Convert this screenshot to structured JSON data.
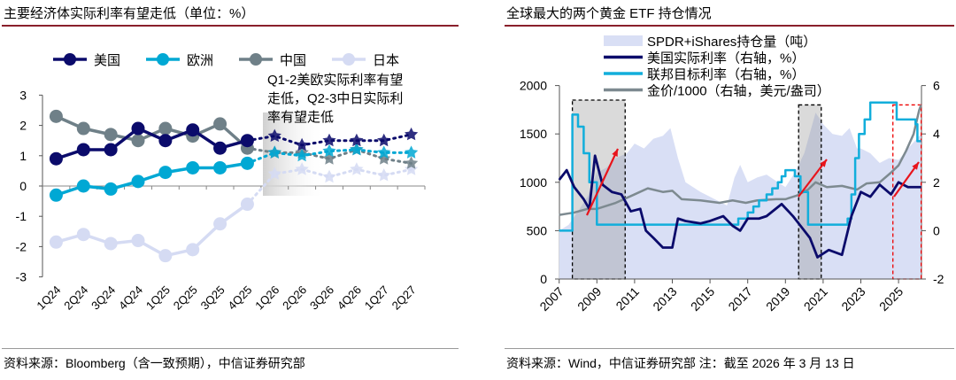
{
  "left": {
    "title": "主要经济体实际利率有望走低（单位：%）",
    "source": "资料来源：Bloomberg（含一致预期），中信证券研究部",
    "annotation": [
      "Q1-2美欧实际利率有望",
      "走低，Q2-3中日实际利",
      "率有望走低"
    ]
  },
  "right": {
    "title": "全球最大的两个黄金 ETF 持仓情况",
    "source": "资料来源：Wind，中信证券研究部 注：截至 2026 年 3 月 13 日"
  },
  "chart_data": [
    {
      "type": "line",
      "categories": [
        "1Q24",
        "2Q24",
        "3Q24",
        "4Q24",
        "1Q25",
        "2Q25",
        "3Q25",
        "4Q25",
        "1Q26",
        "2Q26",
        "3Q26",
        "4Q26",
        "1Q27",
        "2Q27"
      ],
      "forecast_from": "1Q26",
      "ylim": [
        -3,
        3
      ],
      "yticks": [
        3,
        2,
        1,
        0,
        -1,
        -2,
        -3
      ],
      "legend": "top",
      "series": [
        {
          "name": "美国",
          "color": "#0b0b6b",
          "values": [
            0.9,
            1.2,
            1.2,
            1.9,
            1.5,
            1.85,
            1.25,
            1.5,
            1.65,
            1.35,
            1.5,
            1.5,
            1.5,
            1.7
          ]
        },
        {
          "name": "欧洲",
          "color": "#00a8d4",
          "values": [
            -0.3,
            0,
            -0.1,
            0.15,
            0.45,
            0.6,
            0.6,
            0.75,
            1.1,
            1.0,
            1.15,
            1.2,
            1.1,
            1.1
          ]
        },
        {
          "name": "中国",
          "color": "#6f8088",
          "values": [
            2.3,
            1.9,
            1.7,
            1.5,
            1.9,
            1.65,
            2.05,
            1.25,
            1.1,
            1.1,
            0.9,
            1.2,
            0.9,
            0.75
          ]
        },
        {
          "name": "日本",
          "color": "#d5dbf3",
          "values": [
            -1.85,
            -1.6,
            -1.9,
            -1.8,
            -2.3,
            -2.1,
            -1.25,
            -0.6,
            0.4,
            0.55,
            0.3,
            0.55,
            0.35,
            0.55
          ]
        }
      ]
    },
    {
      "type": "area+line",
      "xlim": [
        2007,
        2026.2
      ],
      "xticks": [
        "2007",
        "2009",
        "2011",
        "2013",
        "2015",
        "2017",
        "2019",
        "2021",
        "2023",
        "2025"
      ],
      "ylim_left": [
        0,
        2000
      ],
      "yticks_left": [
        "2000",
        "1500",
        "1000",
        "500",
        "0"
      ],
      "ylim_right": [
        -2,
        6
      ],
      "yticks_right": [
        "6",
        "4",
        "2",
        "0",
        "-2"
      ],
      "legend": "top",
      "series": [
        {
          "name": "SPDR+iShares持仓量（吨）",
          "axis": "left",
          "kind": "area",
          "color": "#d9dff5",
          "points": [
            [
              2007,
              500
            ],
            [
              2007.5,
              560
            ],
            [
              2008,
              700
            ],
            [
              2008.5,
              850
            ],
            [
              2009,
              1100
            ],
            [
              2009.5,
              1150
            ],
            [
              2010,
              1250
            ],
            [
              2010.6,
              1300
            ],
            [
              2011,
              1400
            ],
            [
              2011.5,
              1350
            ],
            [
              2012,
              1450
            ],
            [
              2012.5,
              1480
            ],
            [
              2012.9,
              1560
            ],
            [
              2013.3,
              1250
            ],
            [
              2013.7,
              1000
            ],
            [
              2014.5,
              900
            ],
            [
              2015,
              850
            ],
            [
              2015.9,
              760
            ],
            [
              2016.3,
              1050
            ],
            [
              2016.6,
              1180
            ],
            [
              2017,
              1000
            ],
            [
              2017.5,
              1050
            ],
            [
              2018,
              1080
            ],
            [
              2018.6,
              1000
            ],
            [
              2019,
              950
            ],
            [
              2019.5,
              1100
            ],
            [
              2020,
              1300
            ],
            [
              2020.6,
              1720
            ],
            [
              2021,
              1600
            ],
            [
              2021.5,
              1500
            ],
            [
              2022,
              1480
            ],
            [
              2022.4,
              1560
            ],
            [
              2022.8,
              1350
            ],
            [
              2023,
              1350
            ],
            [
              2023.5,
              1300
            ],
            [
              2024,
              1200
            ],
            [
              2024.5,
              1250
            ],
            [
              2025,
              1230
            ],
            [
              2025.5,
              1350
            ],
            [
              2026.2,
              1500
            ]
          ]
        },
        {
          "name": "美国实际利率（右轴，%）",
          "axis": "right",
          "kind": "line",
          "color": "#0b0b6b",
          "points": [
            [
              2007,
              2.1
            ],
            [
              2007.4,
              2.5
            ],
            [
              2007.8,
              1.8
            ],
            [
              2008.3,
              1.3
            ],
            [
              2008.6,
              0.9
            ],
            [
              2008.9,
              3.1
            ],
            [
              2009.3,
              1.9
            ],
            [
              2009.8,
              1.6
            ],
            [
              2010.3,
              1.5
            ],
            [
              2010.8,
              0.8
            ],
            [
              2011.3,
              0.9
            ],
            [
              2011.6,
              0.0
            ],
            [
              2012,
              -0.3
            ],
            [
              2012.5,
              -0.7
            ],
            [
              2013,
              -0.7
            ],
            [
              2013.3,
              0.5
            ],
            [
              2013.7,
              0.4
            ],
            [
              2014.5,
              0.3
            ],
            [
              2015,
              0.4
            ],
            [
              2015.7,
              0.6
            ],
            [
              2016.2,
              0.2
            ],
            [
              2016.6,
              0.0
            ],
            [
              2017,
              0.5
            ],
            [
              2017.6,
              0.5
            ],
            [
              2018,
              0.6
            ],
            [
              2018.8,
              1.1
            ],
            [
              2019.4,
              0.6
            ],
            [
              2019.8,
              0.2
            ],
            [
              2020.3,
              -0.3
            ],
            [
              2020.7,
              -1.1
            ],
            [
              2021.3,
              -0.8
            ],
            [
              2022,
              -1.0
            ],
            [
              2022.5,
              0.6
            ],
            [
              2023,
              1.6
            ],
            [
              2023.5,
              1.4
            ],
            [
              2024,
              1.9
            ],
            [
              2024.6,
              1.5
            ],
            [
              2025,
              2.0
            ],
            [
              2025.5,
              1.8
            ],
            [
              2026.2,
              1.8
            ]
          ]
        },
        {
          "name": "联邦目标利率（右轴，%）",
          "axis": "right",
          "kind": "step",
          "color": "#12aedb",
          "points": [
            [
              2007,
              0
            ],
            [
              2007.7,
              0
            ],
            [
              2007.7,
              4.8
            ],
            [
              2008,
              4.3
            ],
            [
              2008.3,
              3.2
            ],
            [
              2008.6,
              2.0
            ],
            [
              2009,
              0.25
            ],
            [
              2016,
              0.25
            ],
            [
              2016.5,
              0.5
            ],
            [
              2017,
              0.75
            ],
            [
              2017.3,
              1.0
            ],
            [
              2017.6,
              1.25
            ],
            [
              2018,
              1.5
            ],
            [
              2018.3,
              1.75
            ],
            [
              2018.6,
              2.0
            ],
            [
              2018.8,
              2.25
            ],
            [
              2019,
              2.5
            ],
            [
              2019.5,
              2.25
            ],
            [
              2019.8,
              1.6
            ],
            [
              2020.2,
              0.25
            ],
            [
              2022.2,
              0.25
            ],
            [
              2022.3,
              0.5
            ],
            [
              2022.5,
              1.5
            ],
            [
              2022.7,
              3.0
            ],
            [
              2022.9,
              4.0
            ],
            [
              2023.2,
              4.6
            ],
            [
              2023.5,
              5.3
            ],
            [
              2024.7,
              5.3
            ],
            [
              2024.9,
              4.6
            ],
            [
              2025.9,
              4.4
            ],
            [
              2026.0,
              3.7
            ],
            [
              2026.2,
              3.7
            ]
          ]
        },
        {
          "name": "金价/1000（右轴，美元/盎司）",
          "axis": "right",
          "kind": "line",
          "color": "#7d8a90",
          "points": [
            [
              2007,
              0.65
            ],
            [
              2007.8,
              0.75
            ],
            [
              2008.5,
              0.9
            ],
            [
              2009,
              0.9
            ],
            [
              2010,
              1.15
            ],
            [
              2011,
              1.5
            ],
            [
              2011.7,
              1.75
            ],
            [
              2012.5,
              1.6
            ],
            [
              2013,
              1.65
            ],
            [
              2013.5,
              1.3
            ],
            [
              2014.5,
              1.25
            ],
            [
              2015.5,
              1.15
            ],
            [
              2016.2,
              1.25
            ],
            [
              2016.9,
              1.15
            ],
            [
              2017.5,
              1.25
            ],
            [
              2018.5,
              1.3
            ],
            [
              2019,
              1.3
            ],
            [
              2019.6,
              1.45
            ],
            [
              2020.2,
              1.7
            ],
            [
              2020.6,
              2.0
            ],
            [
              2021.2,
              1.8
            ],
            [
              2022,
              1.85
            ],
            [
              2022.8,
              1.7
            ],
            [
              2023.3,
              1.95
            ],
            [
              2024,
              2.0
            ],
            [
              2024.6,
              2.4
            ],
            [
              2025,
              2.7
            ],
            [
              2025.4,
              3.3
            ],
            [
              2025.8,
              4.0
            ],
            [
              2026.1,
              5.0
            ],
            [
              2026.2,
              5.2
            ]
          ]
        }
      ],
      "highlight_boxes": [
        {
          "from": 2007.7,
          "to": 2010.5,
          "style": "gray"
        },
        {
          "from": 2019.7,
          "to": 2020.9,
          "style": "gray"
        },
        {
          "from": 2024.7,
          "to": 2026.2,
          "style": "red"
        }
      ]
    }
  ]
}
